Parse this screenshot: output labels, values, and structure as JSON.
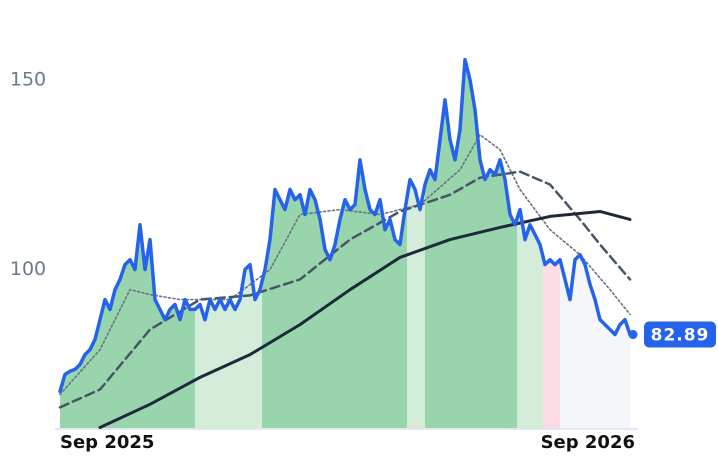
{
  "chart_data": {
    "type": "line",
    "xlim": [
      0,
      115
    ],
    "ylim": [
      58,
      161
    ],
    "xticks": [
      {
        "value": 0,
        "label": "Sep 2025"
      },
      {
        "value": 115,
        "label": "Sep 2026"
      }
    ],
    "yticks": [
      100,
      150
    ],
    "grid": false,
    "bands": [
      {
        "from": 0,
        "to": 27,
        "color": "#98d5ad"
      },
      {
        "from": 27,
        "to": 40.4,
        "color": "#d4edda"
      },
      {
        "from": 40.4,
        "to": 69.4,
        "color": "#98d5ad"
      },
      {
        "from": 69.4,
        "to": 73,
        "color": "#d4edda"
      },
      {
        "from": 73,
        "to": 91.4,
        "color": "#98d5ad"
      },
      {
        "from": 91.4,
        "to": 96.6,
        "color": "#d4edda"
      },
      {
        "from": 96.6,
        "to": 100,
        "color": "#fbdde3"
      },
      {
        "from": 100,
        "to": 115,
        "color": "#f4f6f9"
      }
    ],
    "series": [
      {
        "color": "#2563eb",
        "style": "solid",
        "width": 3.5,
        "x": [
          0,
          1,
          2,
          3,
          4,
          5,
          6,
          7,
          8,
          9,
          10,
          11,
          12,
          13,
          14,
          15,
          16,
          17,
          18,
          19,
          20,
          21,
          22,
          23,
          24,
          25,
          26,
          27,
          28,
          29,
          30,
          31,
          32,
          33,
          34,
          35,
          36,
          37,
          38,
          39,
          40,
          41,
          42,
          43,
          44,
          45,
          46,
          47,
          48,
          49,
          50,
          51,
          52,
          53,
          54,
          55,
          56,
          57,
          58,
          59,
          60,
          61,
          62,
          63,
          64,
          65,
          66,
          67,
          68,
          69,
          70,
          71,
          72,
          73,
          74,
          75,
          76,
          77,
          78,
          79,
          80,
          81,
          82,
          83,
          84,
          85,
          86,
          87,
          88,
          89,
          90,
          91,
          92,
          93,
          94,
          95,
          96,
          97,
          98,
          99,
          100,
          101,
          102,
          103,
          104,
          105,
          106,
          107,
          108,
          109,
          110,
          111,
          112,
          113,
          114
        ],
        "values": [
          67.9,
          72.4,
          73.2,
          73.7,
          75.0,
          77.6,
          78.9,
          81.6,
          86.8,
          92.1,
          89.5,
          94.7,
          97.4,
          101.3,
          102.6,
          100,
          111.8,
          100,
          107.9,
          92.1,
          89.5,
          86.8,
          89.5,
          90.8,
          86.8,
          92.1,
          89.5,
          89.5,
          90.8,
          86.8,
          92.1,
          89.5,
          92.1,
          89.5,
          92.1,
          89.5,
          92.1,
          100,
          101.3,
          92.1,
          94.7,
          100,
          107.9,
          121.1,
          118.4,
          115.8,
          121.1,
          118.4,
          119.7,
          114.5,
          121.1,
          118.4,
          113.2,
          105.3,
          102.6,
          106.6,
          113.2,
          118.4,
          115.8,
          117.1,
          128.9,
          121.1,
          115.8,
          114.5,
          118.4,
          110.5,
          113.2,
          107.9,
          106.6,
          115.8,
          123.7,
          121.1,
          115.8,
          122.4,
          126.3,
          123.7,
          134.2,
          144.7,
          134.2,
          128.9,
          136.8,
          155.3,
          150,
          142.1,
          128.9,
          123.7,
          126.3,
          125,
          128.9,
          123.7,
          114.5,
          111.8,
          115.8,
          107.9,
          111.8,
          109.2,
          106.6,
          101.3,
          102.6,
          101.3,
          102.6,
          97.4,
          92.1,
          102.6,
          103.9,
          101.3,
          96.1,
          92.1,
          86.8,
          85.5,
          84.2,
          82.9,
          85.5,
          86.8,
          82.89
        ]
      },
      {
        "color": "#6b7280",
        "style": "dotted",
        "width": 1.6,
        "x": [
          0,
          8,
          14,
          18,
          24,
          34,
          42,
          48,
          56,
          64,
          72,
          80,
          84,
          88,
          92,
          98,
          104,
          110,
          114
        ],
        "values": [
          67.1,
          78.9,
          94.7,
          93.4,
          92.1,
          92.1,
          100,
          114.5,
          115.8,
          114.5,
          117.1,
          126.3,
          135.5,
          131.6,
          121.1,
          110.5,
          103.9,
          94.7,
          88.2
        ]
      },
      {
        "color": "#475569",
        "style": "dashed",
        "width": 2.5,
        "x": [
          0,
          8,
          18,
          28,
          38,
          48,
          58,
          68,
          78,
          84,
          88,
          92,
          98,
          104,
          108,
          114
        ],
        "values": [
          63.7,
          68.4,
          84.2,
          92.1,
          93.2,
          97.4,
          107.9,
          115.3,
          119.7,
          124.2,
          125,
          125.8,
          122.4,
          113.2,
          106.6,
          97.4
        ]
      },
      {
        "color": "#1e293b",
        "style": "solid",
        "width": 3,
        "x": [
          8,
          18,
          28,
          38,
          48,
          58,
          68,
          78,
          88,
          98,
          108,
          114
        ],
        "values": [
          58.4,
          64.5,
          71.6,
          77.6,
          85.5,
          94.7,
          103.2,
          107.9,
          111.1,
          114,
          115.3,
          113.2
        ]
      }
    ]
  }
}
